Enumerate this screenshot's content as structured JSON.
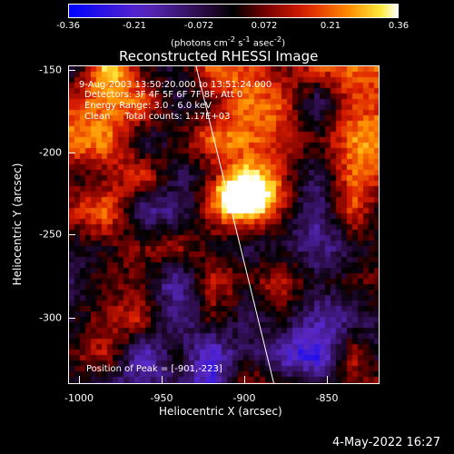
{
  "colorbar": {
    "ticks": [
      "-0.36",
      "-0.21",
      "-0.072",
      "0.072",
      "0.21",
      "0.36"
    ],
    "units_html": "(photons cm<sup>-2</sup> s<sup>-1</sup> asec<sup>-2</sup>)"
  },
  "title": "Reconstructed RHESSI Image",
  "info": {
    "time": "9-Aug-2003 13:50:20.000 to 13:51:24.000",
    "detectors": "Detectors: 3F 4F 5F 6F 7F 8F, Att 0",
    "energy": "Energy Range: 3.0 - 6.0 keV",
    "clean": "Clean     Total counts: 1.17E+03",
    "peak": "Position of Peak = [-901,-223]"
  },
  "axes": {
    "xlabel": "Heliocentric X (arcsec)",
    "ylabel": "Heliocentric Y (arcsec)",
    "xticks": [
      "-1000",
      "-950",
      "-900",
      "-850"
    ],
    "yticks": [
      "-150",
      "-200",
      "-250",
      "-300"
    ]
  },
  "timestamp": "4-May-2022 16:27",
  "chart_data": {
    "type": "heatmap",
    "title": "Reconstructed RHESSI Image",
    "xlabel": "Heliocentric X (arcsec)",
    "ylabel": "Heliocentric Y (arcsec)",
    "xlim": [
      -1006,
      -818
    ],
    "ylim": [
      -337,
      -147
    ],
    "color_range": [
      -0.36,
      0.36
    ],
    "peak": [
      -901,
      -223
    ]
  }
}
